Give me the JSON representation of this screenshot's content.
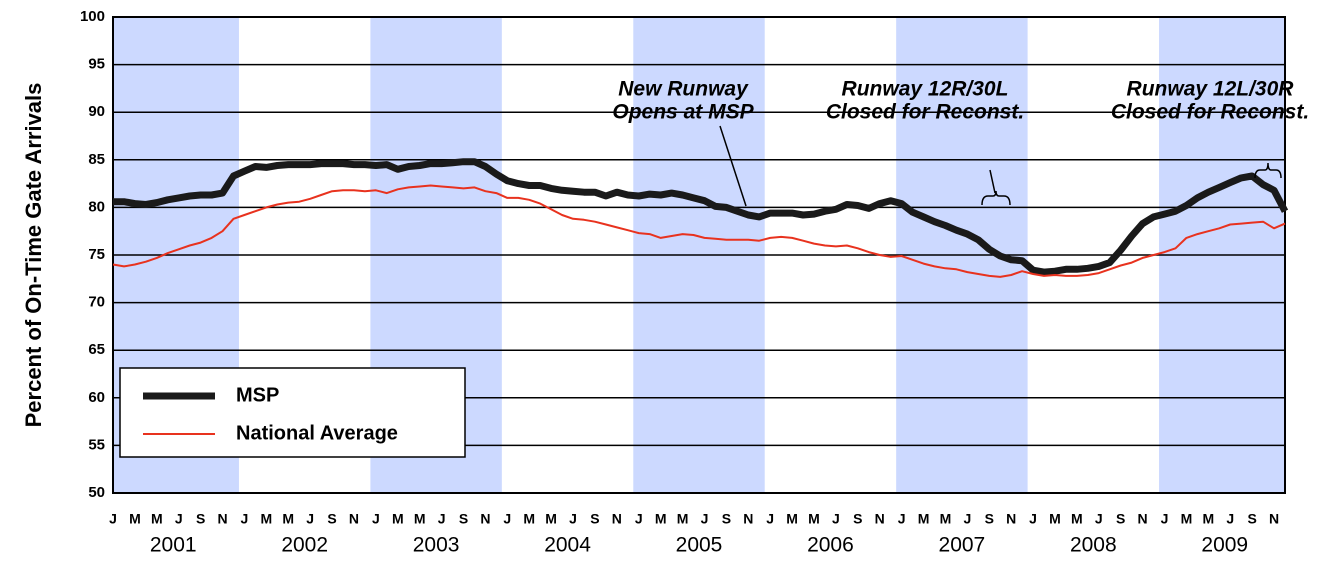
{
  "chart_data": {
    "type": "line",
    "y_label": "Percent of On-Time Gate Arrivals",
    "categories": [
      "J",
      null,
      "M",
      null,
      "M",
      null,
      "J",
      null,
      "S",
      null,
      "N",
      null,
      "J",
      null,
      "M",
      null,
      "M",
      null,
      "J",
      null,
      "S",
      null,
      "N",
      null,
      "J",
      null,
      "M",
      null,
      "M",
      null,
      "J",
      null,
      "S",
      null,
      "N",
      null,
      "J",
      null,
      "M",
      null,
      "M",
      null,
      "J",
      null,
      "S",
      null,
      "N",
      null,
      "J",
      null,
      "M",
      null,
      "M",
      null,
      "J",
      null,
      "S",
      null,
      "N",
      null,
      "J",
      null,
      "M",
      null,
      "M",
      null,
      "J",
      null,
      "S",
      null,
      "N",
      null,
      "J",
      null,
      "M",
      null,
      "M",
      null,
      "J",
      null,
      "S",
      null,
      "N",
      null,
      "J",
      null,
      "M",
      null,
      "M",
      null,
      "J",
      null,
      "S",
      null,
      "N",
      null,
      "J",
      null,
      "M",
      null,
      "M",
      null,
      "J",
      null,
      "S",
      null,
      "N",
      null
    ],
    "years": [
      "2001",
      "2002",
      "2003",
      "2004",
      "2005",
      "2006",
      "2007",
      "2008",
      "2009"
    ],
    "series": [
      {
        "name": "MSP",
        "color": "#1a1a1a",
        "values": [
          80.6,
          80.6,
          80.4,
          80.3,
          80.5,
          80.8,
          81,
          81.2,
          81.3,
          81.3,
          81.5,
          83.3,
          83.8,
          84.3,
          84.2,
          84.4,
          84.5,
          84.5,
          84.5,
          84.6,
          84.6,
          84.6,
          84.5,
          84.5,
          84.4,
          84.5,
          84,
          84.3,
          84.4,
          84.6,
          84.6,
          84.7,
          84.8,
          84.8,
          84.3,
          83.5,
          82.8,
          82.5,
          82.3,
          82.3,
          82,
          81.8,
          81.7,
          81.6,
          81.6,
          81.2,
          81.6,
          81.3,
          81.2,
          81.4,
          81.3,
          81.5,
          81.3,
          81,
          80.7,
          80.1,
          80,
          79.6,
          79.2,
          79,
          79.4,
          79.4,
          79.4,
          79.2,
          79.3,
          79.6,
          79.8,
          80.3,
          80.2,
          79.9,
          80.4,
          80.7,
          80.4,
          79.5,
          79,
          78.5,
          78.1,
          77.6,
          77.2,
          76.6,
          75.6,
          74.9,
          74.5,
          74.4,
          73.4,
          73.2,
          73.3,
          73.5,
          73.5,
          73.6,
          73.8,
          74.2,
          75.5,
          77,
          78.3,
          79,
          79.3,
          79.6,
          80.2,
          81,
          81.6,
          82.1,
          82.6,
          83.1,
          83.3,
          82.4,
          81.8,
          79.6
        ]
      },
      {
        "name": "National Average",
        "color": "#e8321e",
        "values": [
          74,
          73.8,
          74,
          74.3,
          74.7,
          75.2,
          75.6,
          76,
          76.3,
          76.8,
          77.5,
          78.8,
          79.2,
          79.6,
          80,
          80.3,
          80.5,
          80.6,
          80.9,
          81.3,
          81.7,
          81.8,
          81.8,
          81.7,
          81.8,
          81.5,
          81.9,
          82.1,
          82.2,
          82.3,
          82.2,
          82.1,
          82,
          82.1,
          81.7,
          81.5,
          81,
          81,
          80.8,
          80.4,
          79.8,
          79.2,
          78.8,
          78.7,
          78.5,
          78.2,
          77.9,
          77.6,
          77.3,
          77.2,
          76.8,
          77,
          77.2,
          77.1,
          76.8,
          76.7,
          76.6,
          76.6,
          76.6,
          76.5,
          76.8,
          76.9,
          76.8,
          76.5,
          76.2,
          76,
          75.9,
          76,
          75.7,
          75.3,
          75,
          74.8,
          74.9,
          74.5,
          74.1,
          73.8,
          73.6,
          73.5,
          73.2,
          73,
          72.8,
          72.7,
          72.9,
          73.3,
          73,
          72.8,
          72.9,
          72.8,
          72.8,
          72.9,
          73.1,
          73.5,
          73.9,
          74.2,
          74.7,
          75,
          75.3,
          75.7,
          76.8,
          77.2,
          77.5,
          77.8,
          78.2,
          78.3,
          78.4,
          78.5,
          77.8,
          78.3
        ]
      }
    ],
    "ylim": [
      50,
      100
    ],
    "yticks": [
      50,
      55,
      60,
      65,
      70,
      75,
      80,
      85,
      90,
      95,
      100
    ],
    "grid": true,
    "legend": "lower left",
    "annotations": [
      {
        "lines": [
          "New Runway",
          "Opens at MSP"
        ]
      },
      {
        "lines": [
          "Runway 12R/30L",
          "Closed for Reconst."
        ]
      },
      {
        "lines": [
          "Runway 12L/30R",
          "Closed for Reconst."
        ]
      }
    ]
  }
}
